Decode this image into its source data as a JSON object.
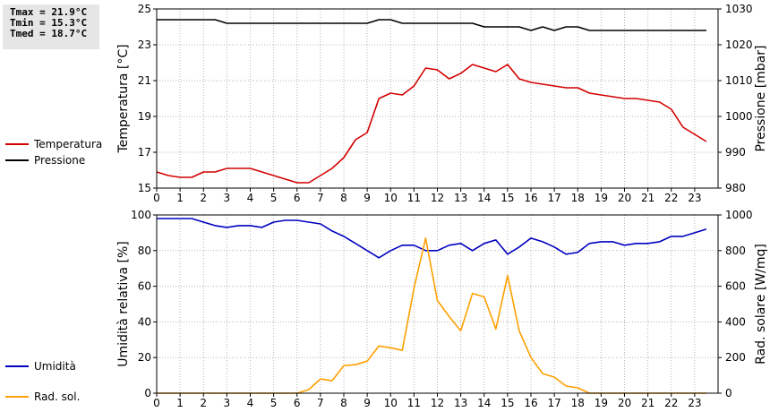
{
  "stats": {
    "tmax": "Tmax = 21.9°C",
    "tmin": "Tmin = 15.3°C",
    "tmed": "Tmed = 18.7°C"
  },
  "colors": {
    "temperature": "#d40000",
    "pressure": "#000000",
    "humidity": "#0000c0",
    "radiation": "#ffa000",
    "grid": "#b4b4b4"
  },
  "chart_data": [
    {
      "type": "line",
      "xlim": [
        0,
        24
      ],
      "x_ticks": [
        "0",
        "1",
        "2",
        "3",
        "4",
        "5",
        "6",
        "7",
        "8",
        "9",
        "10",
        "11",
        "12",
        "13",
        "14",
        "15",
        "16",
        "17",
        "18",
        "19",
        "20",
        "21",
        "22",
        "23"
      ],
      "ylabel": "Temperatura [°C]",
      "ylim": [
        15,
        25
      ],
      "y_ticks": [
        "15",
        "17",
        "19",
        "21",
        "23",
        "25"
      ],
      "y2label": "Pressione [mbar]",
      "y2lim": [
        980,
        1030
      ],
      "y2_ticks": [
        "980",
        "990",
        "1000",
        "1010",
        "1020",
        "1030"
      ],
      "grid": true,
      "legend_position": "left",
      "series": [
        {
          "name": "Temperatura",
          "axis": "left",
          "color": "temperature",
          "x": [
            0,
            0.5,
            1,
            1.5,
            2,
            2.5,
            3,
            3.5,
            4,
            4.5,
            5,
            5.5,
            6,
            6.5,
            7,
            7.5,
            8,
            8.5,
            9,
            9.5,
            10,
            10.5,
            11,
            11.5,
            12,
            12.5,
            13,
            13.5,
            14,
            14.5,
            15,
            15.5,
            16,
            16.5,
            17,
            17.5,
            18,
            18.5,
            19,
            19.5,
            20,
            20.5,
            21,
            21.5,
            22,
            22.5,
            23,
            23.5
          ],
          "y": [
            15.9,
            15.7,
            15.6,
            15.6,
            15.9,
            15.9,
            16.1,
            16.1,
            16.1,
            15.9,
            15.7,
            15.5,
            15.3,
            15.3,
            15.7,
            16.1,
            16.7,
            17.7,
            18.1,
            20.0,
            20.3,
            20.2,
            20.7,
            21.7,
            21.6,
            21.1,
            21.4,
            21.9,
            21.7,
            21.5,
            21.9,
            21.1,
            20.9,
            20.8,
            20.7,
            20.6,
            20.6,
            20.3,
            20.2,
            20.1,
            20.0,
            20.0,
            19.9,
            19.8,
            19.4,
            18.4,
            18.0,
            17.6
          ]
        },
        {
          "name": "Pressione",
          "axis": "right",
          "color": "pressure",
          "x": [
            0,
            0.5,
            1,
            1.5,
            2,
            2.5,
            3,
            3.5,
            4,
            4.5,
            5,
            5.5,
            6,
            6.5,
            7,
            7.5,
            8,
            8.5,
            9,
            9.5,
            10,
            10.5,
            11,
            11.5,
            12,
            12.5,
            13,
            13.5,
            14,
            14.5,
            15,
            15.5,
            16,
            16.5,
            17,
            17.5,
            18,
            18.5,
            19,
            19.5,
            20,
            20.5,
            21,
            21.5,
            22,
            22.5,
            23,
            23.5
          ],
          "y": [
            1027,
            1027,
            1027,
            1027,
            1027,
            1027,
            1026,
            1026,
            1026,
            1026,
            1026,
            1026,
            1026,
            1026,
            1026,
            1026,
            1026,
            1026,
            1026,
            1027,
            1027,
            1026,
            1026,
            1026,
            1026,
            1026,
            1026,
            1026,
            1025,
            1025,
            1025,
            1025,
            1024,
            1025,
            1024,
            1025,
            1025,
            1024,
            1024,
            1024,
            1024,
            1024,
            1024,
            1024,
            1024,
            1024,
            1024,
            1024
          ]
        }
      ]
    },
    {
      "type": "line",
      "xlim": [
        0,
        24
      ],
      "x_ticks": [
        "0",
        "1",
        "2",
        "3",
        "4",
        "5",
        "6",
        "7",
        "8",
        "9",
        "10",
        "11",
        "12",
        "13",
        "14",
        "15",
        "16",
        "17",
        "18",
        "19",
        "20",
        "21",
        "22",
        "23"
      ],
      "ylabel": "Umidità relativa [%]",
      "ylim": [
        0,
        100
      ],
      "y_ticks": [
        "0",
        "20",
        "40",
        "60",
        "80",
        "100"
      ],
      "y2label": "Rad. solare [W/mq]",
      "y2lim": [
        0,
        1000
      ],
      "y2_ticks": [
        "0",
        "200",
        "400",
        "600",
        "800",
        "1000"
      ],
      "grid": true,
      "legend_position": "left",
      "series": [
        {
          "name": "Umidità",
          "axis": "left",
          "color": "humidity",
          "x": [
            0,
            0.5,
            1,
            1.5,
            2,
            2.5,
            3,
            3.5,
            4,
            4.5,
            5,
            5.5,
            6,
            6.5,
            7,
            7.5,
            8,
            8.5,
            9,
            9.5,
            10,
            10.5,
            11,
            11.5,
            12,
            12.5,
            13,
            13.5,
            14,
            14.5,
            15,
            15.5,
            16,
            16.5,
            17,
            17.5,
            18,
            18.5,
            19,
            19.5,
            20,
            20.5,
            21,
            21.5,
            22,
            22.5,
            23,
            23.5
          ],
          "y": [
            98,
            98,
            98,
            98,
            96,
            94,
            93,
            94,
            94,
            93,
            96,
            97,
            97,
            96,
            95,
            91,
            88,
            84,
            80,
            76,
            80,
            83,
            83,
            80,
            80,
            83,
            84,
            80,
            84,
            86,
            78,
            82,
            87,
            85,
            82,
            78,
            79,
            84,
            85,
            85,
            83,
            84,
            84,
            85,
            88,
            88,
            90,
            92
          ]
        },
        {
          "name": "Rad. sol.",
          "axis": "right",
          "color": "radiation",
          "x": [
            0,
            0.5,
            1,
            1.5,
            2,
            2.5,
            3,
            3.5,
            4,
            4.5,
            5,
            5.5,
            6,
            6.5,
            7,
            7.5,
            8,
            8.5,
            9,
            9.5,
            10,
            10.5,
            11,
            11.5,
            12,
            12.5,
            13,
            13.5,
            14,
            14.5,
            15,
            15.5,
            16,
            16.5,
            17,
            17.5,
            18,
            18.5,
            19,
            19.5,
            20,
            20.5,
            21,
            21.5,
            22,
            22.5,
            23,
            23.5
          ],
          "y": [
            0,
            0,
            0,
            0,
            0,
            0,
            0,
            0,
            0,
            0,
            0,
            0,
            0,
            20,
            80,
            70,
            155,
            160,
            180,
            265,
            255,
            240,
            590,
            870,
            520,
            430,
            350,
            560,
            540,
            360,
            660,
            350,
            200,
            110,
            90,
            40,
            30,
            0,
            0,
            0,
            0,
            0,
            0,
            0,
            0,
            0,
            0,
            0
          ]
        }
      ]
    }
  ]
}
